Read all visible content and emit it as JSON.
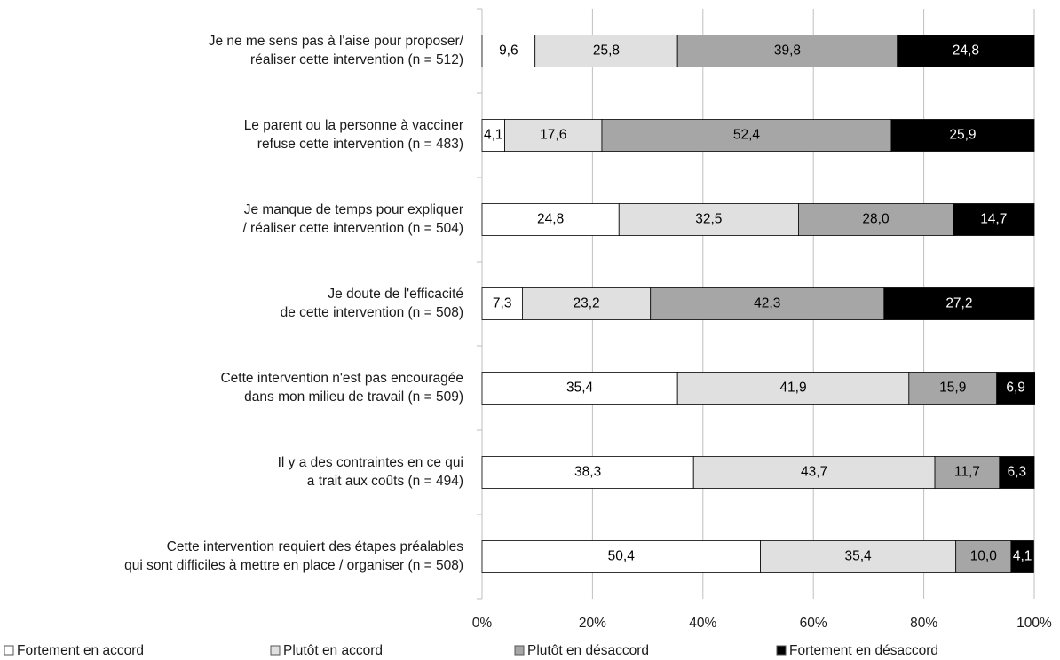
{
  "chart_data": {
    "type": "stacked_bar_horizontal",
    "categories": [
      "Je ne me sens pas à l'aise pour proposer/\nréaliser cette intervention (n = 512)",
      "Le parent ou la personne à vacciner\nrefuse cette intervention (n = 483)",
      "Je manque de temps pour expliquer\n/ réaliser cette intervention (n = 504)",
      "Je doute de l'efficacité\nde cette intervention (n = 508)",
      "Cette intervention n'est pas encouragée\ndans mon milieu de travail (n = 509)",
      "Il y a des contraintes en ce qui\na trait aux coûts (n = 494)",
      "Cette intervention requiert des étapes préalables\nqui sont difficiles à mettre en place / organiser (n = 508)"
    ],
    "series": [
      {
        "name": "Fortement en accord",
        "color": "#ffffff",
        "label_color": "#000000",
        "values": [
          9.6,
          4.1,
          24.8,
          7.3,
          35.4,
          38.3,
          50.4
        ],
        "value_labels": [
          "9,6",
          "4,1",
          "24,8",
          "7,3",
          "35,4",
          "38,3",
          "50,4"
        ]
      },
      {
        "name": "Plutôt en accord",
        "color": "#e0e0e0",
        "label_color": "#000000",
        "values": [
          25.8,
          17.6,
          32.5,
          23.2,
          41.9,
          43.7,
          35.4
        ],
        "value_labels": [
          "25,8",
          "17,6",
          "32,5",
          "23,2",
          "41,9",
          "43,7",
          "35,4"
        ]
      },
      {
        "name": "Plutôt en désaccord",
        "color": "#a6a6a6",
        "label_color": "#000000",
        "values": [
          39.8,
          52.4,
          28.0,
          42.3,
          15.9,
          11.7,
          10.0
        ],
        "value_labels": [
          "39,8",
          "52,4",
          "28,0",
          "42,3",
          "15,9",
          "11,7",
          "10,0"
        ]
      },
      {
        "name": "Fortement en désaccord",
        "color": "#000000",
        "label_color": "#ffffff",
        "values": [
          24.8,
          25.9,
          14.7,
          27.2,
          6.9,
          6.3,
          4.1
        ],
        "value_labels": [
          "24,8",
          "25,9",
          "14,7",
          "27,2",
          "6,9",
          "6,3",
          "4,1"
        ]
      }
    ],
    "xlim": [
      0,
      100
    ],
    "xticks": [
      {
        "value": 0,
        "label": "0%"
      },
      {
        "value": 20,
        "label": "20%"
      },
      {
        "value": 40,
        "label": "40%"
      },
      {
        "value": 60,
        "label": "60%"
      },
      {
        "value": 80,
        "label": "80%"
      },
      {
        "value": 100,
        "label": "100%"
      }
    ],
    "grid": true,
    "legend": "bottom"
  }
}
